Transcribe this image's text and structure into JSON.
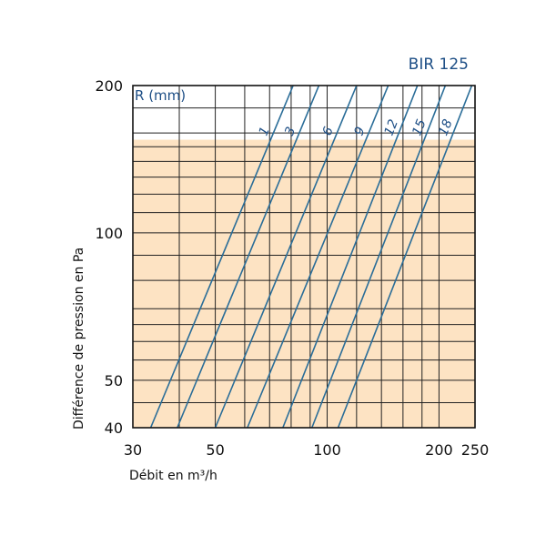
{
  "chart_data": {
    "type": "line",
    "title": "BIR 125",
    "xlabel": "Débit en m³/h",
    "ylabel": "Différence de pression en Pa",
    "legend_title": "R (mm)",
    "x_scale": "log",
    "y_scale": "log",
    "xlim": [
      30,
      250
    ],
    "ylim": [
      40,
      200
    ],
    "x_tick_labels": [
      "30",
      "50",
      "100",
      "200",
      "250"
    ],
    "x_ticks": [
      30,
      50,
      100,
      200,
      250
    ],
    "y_tick_labels": [
      "40",
      "50",
      "100",
      "200"
    ],
    "y_ticks": [
      40,
      50,
      100,
      200
    ],
    "x_grid": [
      30,
      40,
      50,
      60,
      70,
      80,
      90,
      100,
      120,
      140,
      160,
      180,
      200,
      250
    ],
    "y_grid": [
      40,
      45,
      50,
      55,
      60,
      65,
      70,
      80,
      90,
      100,
      110,
      120,
      130,
      140,
      150,
      160,
      180,
      200
    ],
    "shaded_region": {
      "y_max": 155,
      "color": "#fde3c3"
    },
    "grid": true,
    "series": [
      {
        "name": "1",
        "points": [
          [
            33.5,
            40
          ],
          [
            81,
            200
          ]
        ]
      },
      {
        "name": "3",
        "points": [
          [
            39.5,
            40
          ],
          [
            95,
            200
          ]
        ]
      },
      {
        "name": "6",
        "points": [
          [
            50,
            40
          ],
          [
            120,
            200
          ]
        ]
      },
      {
        "name": "9",
        "points": [
          [
            61,
            40
          ],
          [
            146,
            200
          ]
        ]
      },
      {
        "name": "12",
        "points": [
          [
            76,
            40
          ],
          [
            175,
            200
          ]
        ]
      },
      {
        "name": "15",
        "points": [
          [
            91,
            40
          ],
          [
            208,
            200
          ]
        ]
      },
      {
        "name": "18",
        "points": [
          [
            107,
            40
          ],
          [
            245,
            200
          ]
        ]
      }
    ],
    "colors": {
      "curve": "#2a6d98",
      "label": "#1e4f86",
      "grid": "#222222",
      "frame": "#111111"
    }
  }
}
